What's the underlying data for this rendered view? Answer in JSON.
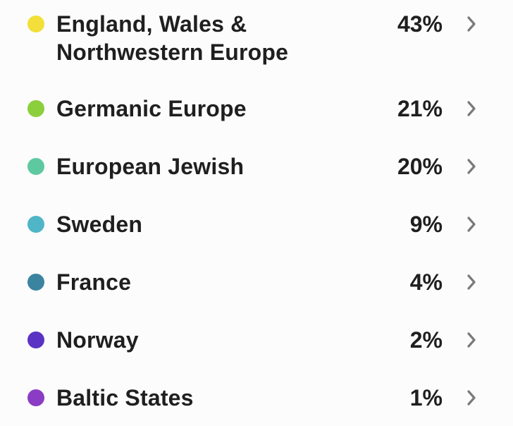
{
  "regions": [
    {
      "name_line1": "England, Wales &",
      "name_line2": "Northwestern Europe",
      "percent": "43%",
      "color": "#f2df3a",
      "icon": "chevron-right-icon"
    },
    {
      "name_line1": "Germanic Europe",
      "percent": "21%",
      "color": "#8ccf3c",
      "icon": "chevron-right-icon"
    },
    {
      "name_line1": "European Jewish",
      "percent": "20%",
      "color": "#5ec9a0",
      "icon": "chevron-right-icon"
    },
    {
      "name_line1": "Sweden",
      "percent": "9%",
      "color": "#4fb5c7",
      "icon": "chevron-right-icon"
    },
    {
      "name_line1": "France",
      "percent": "4%",
      "color": "#3a84a0",
      "icon": "chevron-right-icon"
    },
    {
      "name_line1": "Norway",
      "percent": "2%",
      "color": "#5b33c4",
      "icon": "chevron-right-icon"
    },
    {
      "name_line1": "Baltic States",
      "percent": "1%",
      "color": "#8b3cc4",
      "icon": "chevron-right-icon"
    }
  ]
}
